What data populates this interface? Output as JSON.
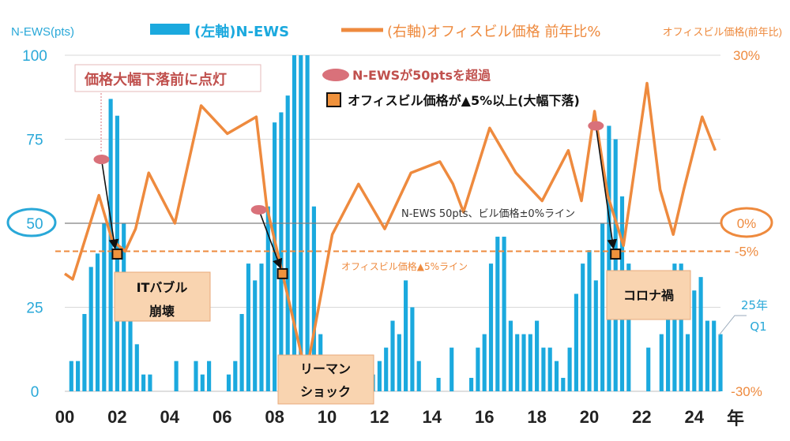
{
  "chart_data": {
    "type": "bar+line",
    "title": "",
    "left_axis": {
      "label": "N-EWS(pts)",
      "min": 0,
      "max": 100,
      "ticks": [
        "0",
        "25",
        "50",
        "75",
        "100"
      ]
    },
    "right_axis": {
      "label": "オフィスビル価格(前年比)",
      "min": -30,
      "max": 30,
      "ticks": [
        "-30%",
        "-5%",
        "0%",
        "30%"
      ]
    },
    "x_axis": {
      "ticks": [
        "00",
        "02",
        "04",
        "06",
        "08",
        "10",
        "12",
        "14",
        "16",
        "18",
        "20",
        "22",
        "24"
      ],
      "unit": "年",
      "min": 2000,
      "max": 2025
    },
    "legend": {
      "bars": "(左軸)N-EWS",
      "line": "(右軸)オフィスビル価格 前年比%"
    },
    "series": [
      {
        "name": "(左軸)N-EWS",
        "axis": "left",
        "kind": "bar",
        "x": [
          2000.25,
          2000.5,
          2000.75,
          2001.0,
          2001.25,
          2001.5,
          2001.75,
          2002.0,
          2002.25,
          2002.5,
          2002.75,
          2003.0,
          2003.25,
          2003.5,
          2004.25,
          2004.75,
          2005.0,
          2005.25,
          2005.5,
          2006.0,
          2006.25,
          2006.5,
          2006.75,
          2007.0,
          2007.25,
          2007.5,
          2007.75,
          2008.0,
          2008.25,
          2008.5,
          2008.75,
          2009.0,
          2009.25,
          2009.5,
          2009.75,
          2010.0,
          2011.25,
          2011.75,
          2012.0,
          2012.25,
          2012.5,
          2012.75,
          2013.0,
          2013.25,
          2013.5,
          2014.0,
          2014.25,
          2014.75,
          2015.0,
          2015.5,
          2015.75,
          2016.0,
          2016.25,
          2016.5,
          2016.75,
          2017.0,
          2017.25,
          2017.5,
          2017.75,
          2018.0,
          2018.25,
          2018.5,
          2018.75,
          2019.0,
          2019.25,
          2019.5,
          2019.75,
          2020.0,
          2020.25,
          2020.5,
          2020.75,
          2021.0,
          2021.25,
          2021.5,
          2022.25,
          2022.5,
          2022.75,
          2023.0,
          2023.25,
          2023.5,
          2023.75,
          2024.0,
          2024.25,
          2024.5,
          2024.75,
          2025.0
        ],
        "values": [
          9,
          9,
          23,
          37,
          41,
          50,
          87,
          82,
          50,
          28,
          14,
          5,
          5,
          0,
          9,
          0,
          9,
          5,
          9,
          0,
          5,
          9,
          23,
          38,
          33,
          38,
          55,
          80,
          83,
          88,
          100,
          100,
          100,
          55,
          17,
          5,
          4,
          5,
          9,
          13,
          21,
          17,
          33,
          25,
          9,
          0,
          4,
          13,
          0,
          4,
          13,
          17,
          38,
          46,
          46,
          21,
          17,
          17,
          17,
          21,
          13,
          13,
          9,
          4,
          13,
          29,
          38,
          42,
          33,
          50,
          79,
          75,
          58,
          38,
          13,
          0,
          17,
          34,
          38,
          38,
          17,
          30,
          34,
          21,
          21,
          17
        ]
      },
      {
        "name": "(右軸)オフィスビル価格 前年比%",
        "axis": "right",
        "kind": "line",
        "x": [
          2000.0,
          2000.3,
          2001.3,
          2001.8,
          2002.3,
          2002.7,
          2003.2,
          2004.2,
          2005.2,
          2006.2,
          2007.3,
          2007.7,
          2008.3,
          2009.2,
          2010.2,
          2011.2,
          2012.2,
          2013.2,
          2014.3,
          2014.8,
          2015.2,
          2016.2,
          2017.2,
          2018.2,
          2019.2,
          2019.7,
          2020.2,
          2020.7,
          2021.3,
          2022.2,
          2022.7,
          2023.2,
          2023.6,
          2024.3,
          2024.8
        ],
        "values": [
          -9,
          -10,
          5,
          -3,
          -5,
          -1,
          9,
          0,
          21,
          16,
          19,
          3,
          -9,
          -27,
          -2,
          7,
          -1,
          9,
          11,
          7,
          2,
          17,
          9,
          4,
          13,
          4,
          20,
          5,
          -4,
          25,
          6,
          -2,
          6,
          19,
          13
        ]
      }
    ],
    "reference_lines": [
      {
        "label": "N-EWS 50pts、ビル価格±0%ライン",
        "axis": "left",
        "value": 50
      },
      {
        "label": "オフィスビル価格▲5%ライン",
        "axis": "right",
        "value": -5
      }
    ],
    "annotations": {
      "ews_over": {
        "label": "N-EWSが50ptsを超過",
        "points": [
          {
            "x": 2001.4,
            "y": 69
          },
          {
            "x": 2007.4,
            "y": 54
          },
          {
            "x": 2020.25,
            "y": 79
          }
        ]
      },
      "price_drop": {
        "label": "オフィスビル価格が▲5%以上(大幅下落)",
        "points": [
          {
            "x": 2002.0,
            "y": -5.5
          },
          {
            "x": 2008.3,
            "y": -9
          },
          {
            "x": 2021.0,
            "y": -5.5
          }
        ]
      },
      "events": [
        "価格大幅下落前に点灯",
        "ITバブル",
        "崩壊",
        "リーマン",
        "ショック",
        "コロナ禍",
        "25年",
        "Q1"
      ],
      "circle_left": "50",
      "circle_right": "0%"
    },
    "colors": {
      "bars": "#1ba9de",
      "line": "#ee8a3e",
      "left_axis": "#29a8d8",
      "right_axis": "#ee8a3e",
      "ews_marker": "#d9717a",
      "drop_marker": "#f0923c",
      "event_label": "#c0504d",
      "event_box": "#f9d4b0"
    }
  }
}
